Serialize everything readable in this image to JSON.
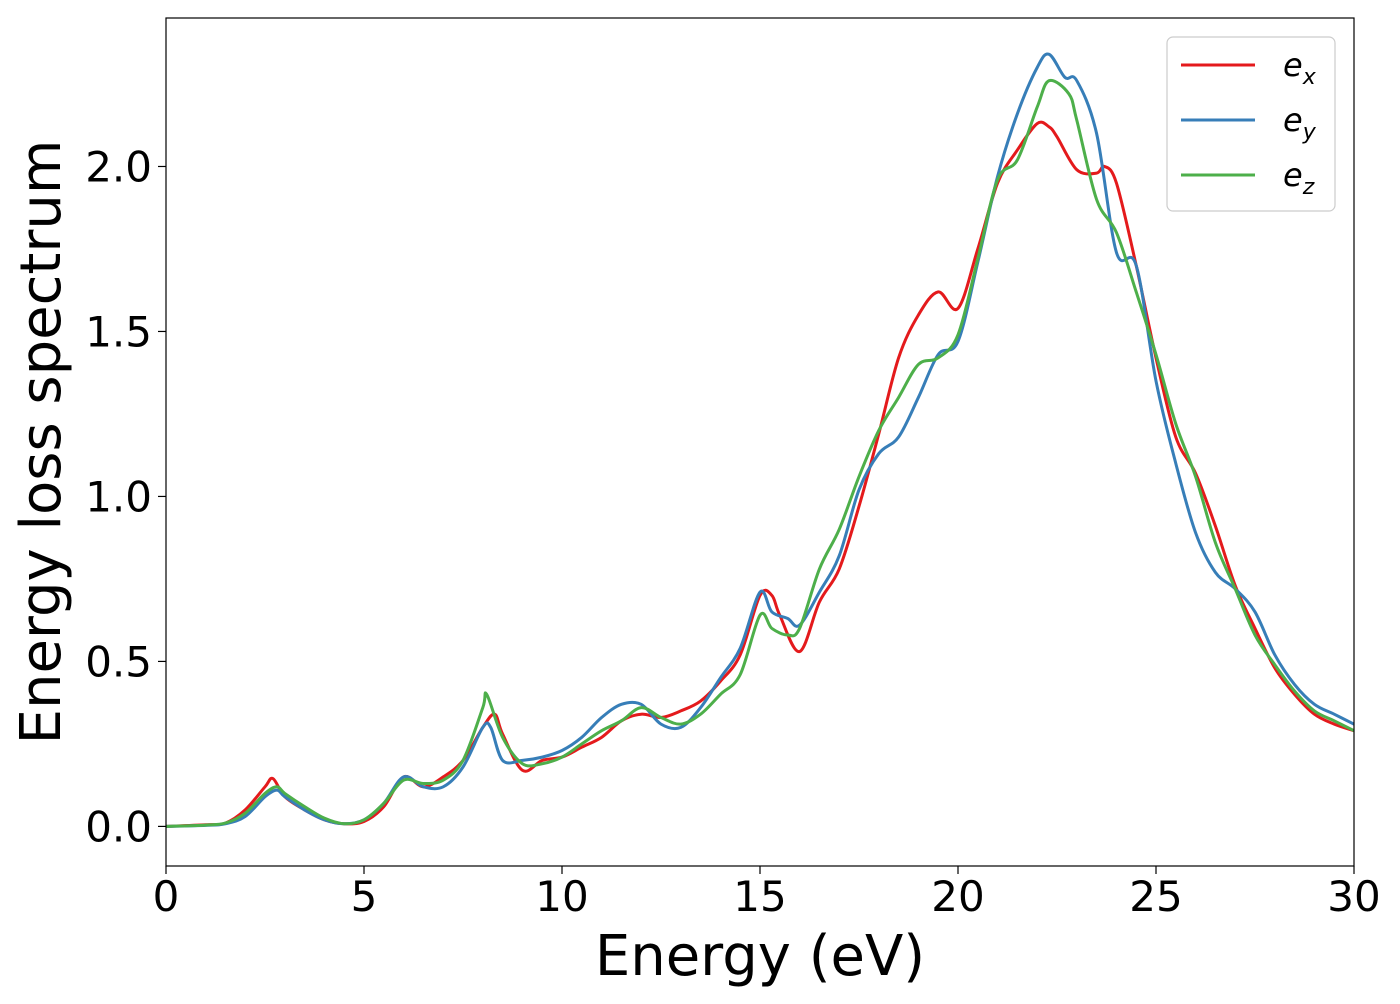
{
  "chart_data": {
    "type": "line",
    "title": "",
    "xlabel": "Energy (eV)",
    "ylabel": "Energy loss spectrum",
    "xlim": [
      0,
      30
    ],
    "ylim": [
      -0.12,
      2.45
    ],
    "xticks": [
      0,
      5,
      10,
      15,
      20,
      25,
      30
    ],
    "xtick_labels": [
      "0",
      "5",
      "10",
      "15",
      "20",
      "25",
      "30"
    ],
    "yticks": [
      0.0,
      0.5,
      1.0,
      1.5,
      2.0
    ],
    "ytick_labels": [
      "0.0",
      "0.5",
      "1.0",
      "1.5",
      "2.0"
    ],
    "grid": false,
    "legend_position": "top-right",
    "series": [
      {
        "name": "e_x",
        "label_base": "e",
        "label_sub": "x",
        "color": "#e41a1c",
        "x": [
          0,
          1,
          1.5,
          2,
          2.5,
          2.7,
          3,
          3.5,
          4,
          4.5,
          5,
          5.5,
          6,
          6.5,
          7,
          7.5,
          8,
          8.3,
          8.5,
          9,
          9.5,
          10,
          10.5,
          11,
          11.5,
          12,
          12.5,
          13,
          13.5,
          14,
          14.5,
          15,
          15.3,
          15.5,
          16,
          16.5,
          17,
          17.5,
          18,
          18.5,
          19,
          19.5,
          20,
          20.5,
          21,
          21.5,
          22,
          22.3,
          22.5,
          23,
          23.5,
          23.7,
          24,
          24.5,
          25,
          25.5,
          26,
          26.5,
          27,
          27.5,
          28,
          28.5,
          29,
          29.5,
          30
        ],
        "y": [
          0,
          0.005,
          0.01,
          0.05,
          0.12,
          0.145,
          0.09,
          0.05,
          0.02,
          0.008,
          0.015,
          0.06,
          0.15,
          0.12,
          0.15,
          0.2,
          0.3,
          0.34,
          0.28,
          0.17,
          0.2,
          0.21,
          0.24,
          0.27,
          0.32,
          0.34,
          0.33,
          0.35,
          0.38,
          0.44,
          0.52,
          0.7,
          0.7,
          0.64,
          0.53,
          0.68,
          0.78,
          0.97,
          1.19,
          1.42,
          1.55,
          1.62,
          1.57,
          1.75,
          1.95,
          2.05,
          2.13,
          2.12,
          2.09,
          1.99,
          1.98,
          2.0,
          1.95,
          1.7,
          1.42,
          1.18,
          1.07,
          0.91,
          0.73,
          0.6,
          0.48,
          0.4,
          0.34,
          0.31,
          0.29
        ]
      },
      {
        "name": "e_y",
        "label_base": "e",
        "label_sub": "y",
        "color": "#377eb8",
        "x": [
          0,
          1,
          1.5,
          2,
          2.5,
          2.8,
          3,
          3.5,
          4,
          4.5,
          5,
          5.5,
          6,
          6.5,
          7,
          7.5,
          8,
          8.2,
          8.5,
          9,
          9.5,
          10,
          10.5,
          11,
          11.5,
          12,
          12.5,
          13,
          13.5,
          14,
          14.5,
          15,
          15.3,
          15.7,
          16,
          16.5,
          17,
          17.5,
          18,
          18.5,
          19,
          19.5,
          20,
          20.5,
          21,
          21.5,
          22,
          22.3,
          22.7,
          23,
          23.5,
          24,
          24.5,
          25,
          25.5,
          26,
          26.5,
          27,
          27.5,
          28,
          28.5,
          29,
          29.5,
          30
        ],
        "y": [
          0,
          0.003,
          0.008,
          0.03,
          0.09,
          0.11,
          0.09,
          0.05,
          0.02,
          0.008,
          0.02,
          0.07,
          0.15,
          0.12,
          0.12,
          0.18,
          0.3,
          0.3,
          0.2,
          0.2,
          0.21,
          0.23,
          0.27,
          0.33,
          0.37,
          0.37,
          0.31,
          0.3,
          0.36,
          0.45,
          0.54,
          0.71,
          0.65,
          0.63,
          0.61,
          0.71,
          0.82,
          1.02,
          1.13,
          1.18,
          1.3,
          1.43,
          1.47,
          1.71,
          1.97,
          2.16,
          2.3,
          2.34,
          2.27,
          2.26,
          2.1,
          1.74,
          1.7,
          1.35,
          1.1,
          0.89,
          0.77,
          0.72,
          0.65,
          0.52,
          0.43,
          0.37,
          0.34,
          0.31
        ]
      },
      {
        "name": "e_z",
        "label_base": "e",
        "label_sub": "z",
        "color": "#4daf4a",
        "x": [
          0,
          1,
          1.5,
          2,
          2.5,
          2.8,
          3,
          3.5,
          4,
          4.5,
          5,
          5.5,
          6,
          6.5,
          7,
          7.5,
          8,
          8.1,
          8.5,
          9,
          9.5,
          10,
          10.5,
          11,
          11.5,
          12,
          12.5,
          13,
          13.5,
          14,
          14.5,
          15,
          15.3,
          15.7,
          16,
          16.5,
          17,
          17.5,
          18,
          18.5,
          19,
          19.5,
          20,
          20.5,
          21,
          21.5,
          22,
          22.3,
          22.8,
          23,
          23.5,
          24,
          24.5,
          25,
          25.5,
          26,
          26.5,
          27,
          27.5,
          28,
          28.5,
          29,
          29.5,
          30
        ],
        "y": [
          0,
          0.004,
          0.01,
          0.04,
          0.1,
          0.12,
          0.1,
          0.06,
          0.025,
          0.008,
          0.02,
          0.07,
          0.14,
          0.13,
          0.14,
          0.2,
          0.36,
          0.4,
          0.27,
          0.19,
          0.19,
          0.21,
          0.25,
          0.29,
          0.32,
          0.36,
          0.33,
          0.31,
          0.34,
          0.4,
          0.46,
          0.64,
          0.6,
          0.58,
          0.6,
          0.78,
          0.9,
          1.06,
          1.2,
          1.3,
          1.4,
          1.42,
          1.49,
          1.72,
          1.96,
          2.02,
          2.18,
          2.26,
          2.22,
          2.14,
          1.9,
          1.8,
          1.62,
          1.43,
          1.22,
          1.06,
          0.86,
          0.72,
          0.58,
          0.49,
          0.41,
          0.35,
          0.32,
          0.29
        ]
      }
    ]
  }
}
